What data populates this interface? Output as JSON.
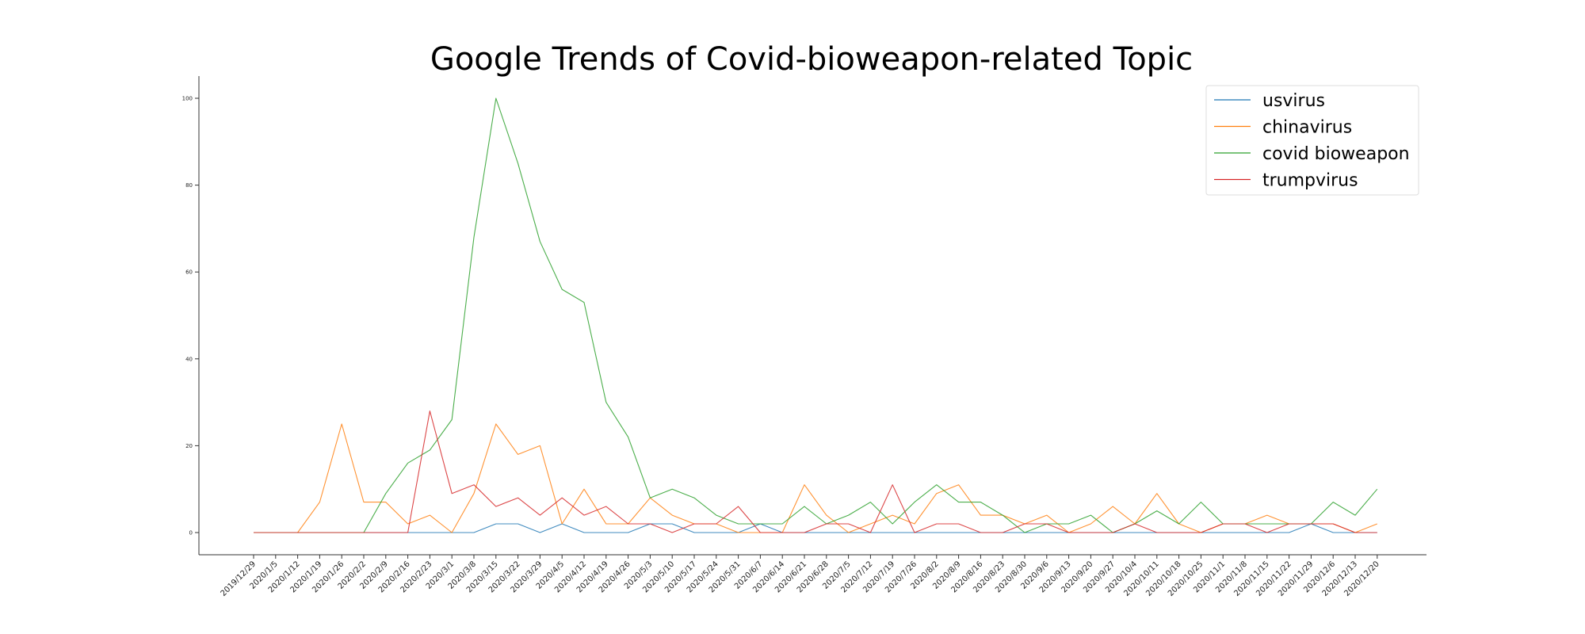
{
  "chart_data": {
    "type": "line",
    "title": "Google Trends of Covid-bioweapon-related Topic",
    "xlabel": "",
    "ylabel": "",
    "ylim": [
      -5,
      105
    ],
    "yticks": [
      0,
      20,
      40,
      60,
      80,
      100
    ],
    "grid": false,
    "legend_position": "top-right",
    "x": [
      "2019/12/29",
      "2020/1/5",
      "2020/1/12",
      "2020/1/19",
      "2020/1/26",
      "2020/2/2",
      "2020/2/9",
      "2020/2/16",
      "2020/2/23",
      "2020/3/1",
      "2020/3/8",
      "2020/3/15",
      "2020/3/22",
      "2020/3/29",
      "2020/4/5",
      "2020/4/12",
      "2020/4/19",
      "2020/4/26",
      "2020/5/3",
      "2020/5/10",
      "2020/5/17",
      "2020/5/24",
      "2020/5/31",
      "2020/6/7",
      "2020/6/14",
      "2020/6/21",
      "2020/6/28",
      "2020/7/5",
      "2020/7/12",
      "2020/7/19",
      "2020/7/26",
      "2020/8/2",
      "2020/8/9",
      "2020/8/16",
      "2020/8/23",
      "2020/8/30",
      "2020/9/6",
      "2020/9/13",
      "2020/9/20",
      "2020/9/27",
      "2020/10/4",
      "2020/10/11",
      "2020/10/18",
      "2020/10/25",
      "2020/11/1",
      "2020/11/8",
      "2020/11/15",
      "2020/11/22",
      "2020/11/29",
      "2020/12/6",
      "2020/12/13",
      "2020/12/20"
    ],
    "series": [
      {
        "name": "usvirus",
        "color": "#1f77b4",
        "values": [
          0,
          0,
          0,
          0,
          0,
          0,
          0,
          0,
          0,
          0,
          0,
          2,
          2,
          0,
          2,
          0,
          0,
          0,
          2,
          2,
          0,
          0,
          0,
          2,
          0,
          0,
          0,
          0,
          0,
          0,
          0,
          0,
          0,
          0,
          0,
          0,
          0,
          0,
          0,
          0,
          0,
          0,
          0,
          0,
          0,
          0,
          0,
          0,
          2,
          0,
          0,
          0
        ]
      },
      {
        "name": "chinavirus",
        "color": "#ff7f0e",
        "values": [
          0,
          0,
          0,
          7,
          25,
          7,
          7,
          2,
          4,
          0,
          9,
          25,
          18,
          20,
          2,
          10,
          2,
          2,
          8,
          4,
          2,
          2,
          0,
          0,
          0,
          11,
          4,
          0,
          2,
          4,
          2,
          9,
          11,
          4,
          4,
          2,
          4,
          0,
          2,
          6,
          2,
          9,
          2,
          0,
          2,
          2,
          4,
          2,
          2,
          2,
          0,
          2
        ]
      },
      {
        "name": "covid bioweapon",
        "color": "#2ca02c",
        "values": [
          0,
          0,
          0,
          0,
          0,
          0,
          9,
          16,
          19,
          26,
          68,
          100,
          85,
          67,
          56,
          53,
          30,
          22,
          8,
          10,
          8,
          4,
          2,
          2,
          2,
          6,
          2,
          4,
          7,
          2,
          7,
          11,
          7,
          7,
          4,
          0,
          2,
          2,
          4,
          0,
          2,
          5,
          2,
          7,
          2,
          2,
          2,
          2,
          2,
          7,
          4,
          10
        ]
      },
      {
        "name": "trumpvirus",
        "color": "#d62728",
        "values": [
          0,
          0,
          0,
          0,
          0,
          0,
          0,
          0,
          28,
          9,
          11,
          6,
          8,
          4,
          8,
          4,
          6,
          2,
          2,
          0,
          2,
          2,
          6,
          0,
          0,
          0,
          2,
          2,
          0,
          11,
          0,
          2,
          2,
          0,
          0,
          2,
          2,
          0,
          0,
          0,
          2,
          0,
          0,
          0,
          2,
          2,
          0,
          2,
          2,
          2,
          0,
          0
        ]
      }
    ]
  }
}
